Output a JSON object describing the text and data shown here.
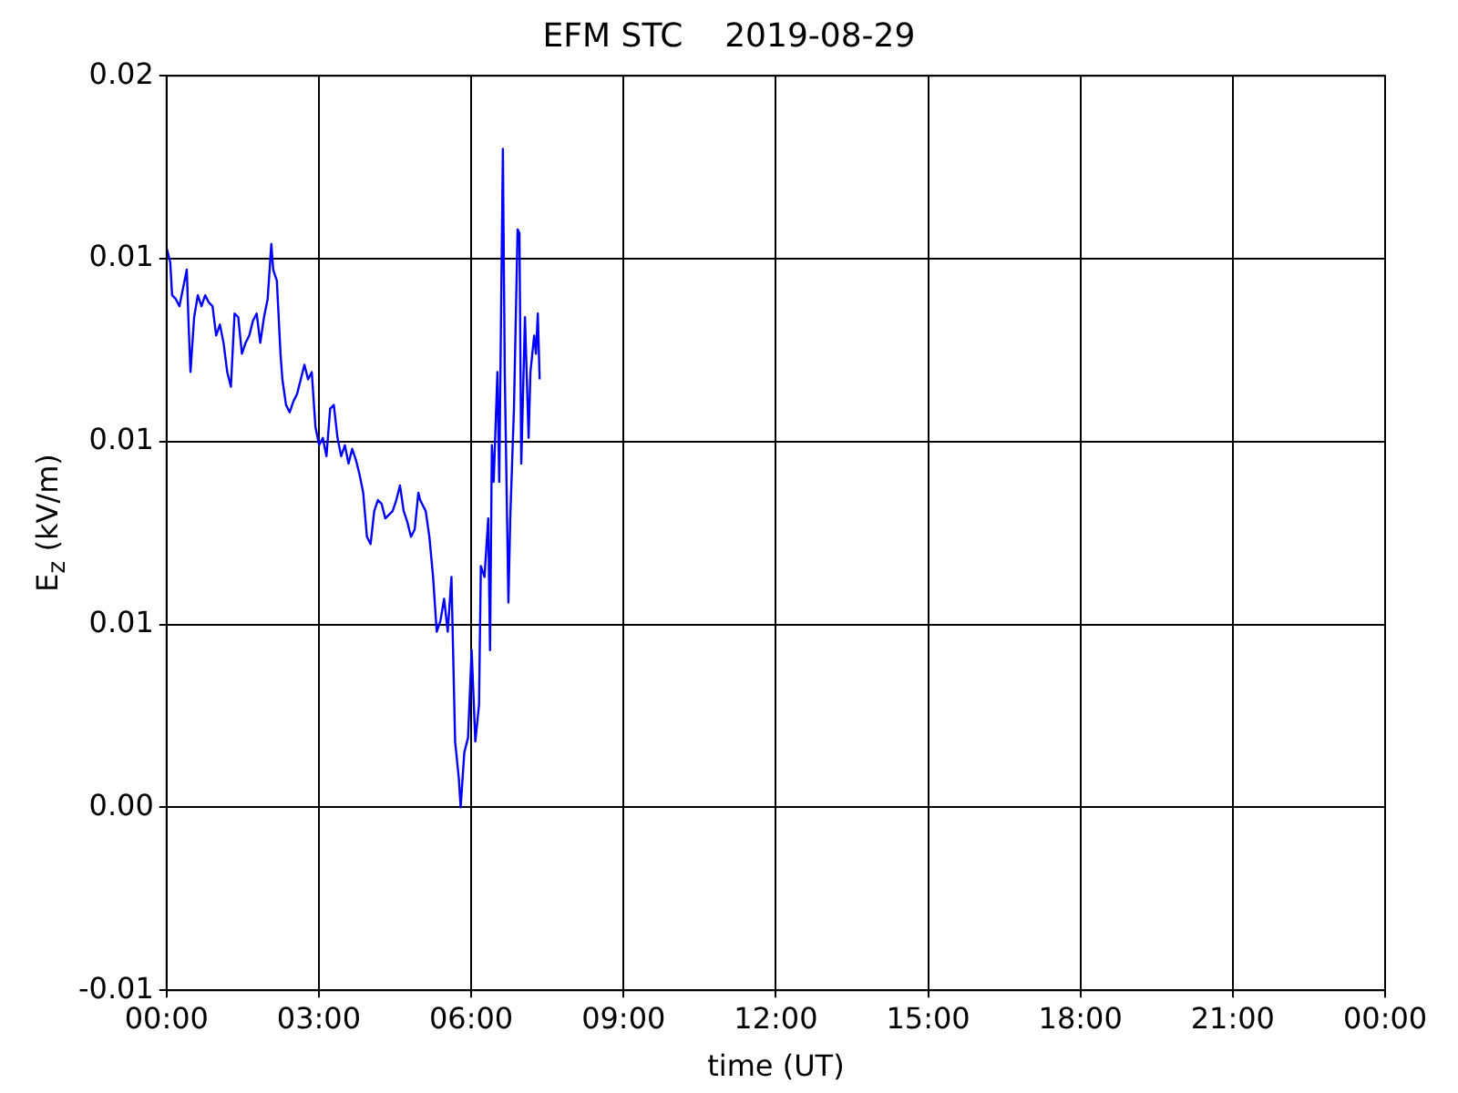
{
  "chart_data": {
    "type": "line",
    "title": "EFM STC    2019-08-29",
    "xlabel": "time (UT)",
    "ylabel": "E$_{z}$ (kV/m)",
    "xlim": [
      0,
      24
    ],
    "xticks": [
      {
        "value": 0,
        "label": "00:00"
      },
      {
        "value": 3,
        "label": "03:00"
      },
      {
        "value": 6,
        "label": "06:00"
      },
      {
        "value": 9,
        "label": "09:00"
      },
      {
        "value": 12,
        "label": "12:00"
      },
      {
        "value": 15,
        "label": "15:00"
      },
      {
        "value": 18,
        "label": "18:00"
      },
      {
        "value": 21,
        "label": "21:00"
      },
      {
        "value": 24,
        "label": "00:00"
      }
    ],
    "ylim": [
      -0.005,
      0.02
    ],
    "yticks": [
      {
        "value": -0.005,
        "label": "-0.01"
      },
      {
        "value": 0,
        "label": "0.00"
      },
      {
        "value": 0.005,
        "label": "0.01"
      },
      {
        "value": 0.01,
        "label": "0.01"
      },
      {
        "value": 0.015,
        "label": "0.01"
      },
      {
        "value": 0.02,
        "label": "0.02"
      }
    ],
    "grid": true,
    "line_style": "solid",
    "series": [
      {
        "color": "#0000ff",
        "x": [
          0.0,
          0.072,
          0.109,
          0.181,
          0.253,
          0.326,
          0.398,
          0.434,
          0.471,
          0.543,
          0.615,
          0.688,
          0.76,
          0.833,
          0.905,
          0.977,
          1.05,
          1.122,
          1.195,
          1.267,
          1.339,
          1.412,
          1.484,
          1.557,
          1.629,
          1.701,
          1.774,
          1.846,
          1.919,
          1.991,
          2.063,
          2.1,
          2.172,
          2.244,
          2.281,
          2.353,
          2.425,
          2.498,
          2.57,
          2.643,
          2.715,
          2.787,
          2.86,
          2.932,
          3.005,
          3.077,
          3.149,
          3.222,
          3.294,
          3.367,
          3.439,
          3.511,
          3.584,
          3.656,
          3.729,
          3.801,
          3.873,
          3.946,
          4.018,
          4.09,
          4.163,
          4.235,
          4.308,
          4.38,
          4.452,
          4.525,
          4.597,
          4.67,
          4.742,
          4.814,
          4.887,
          4.959,
          4.995,
          5.104,
          5.176,
          5.249,
          5.321,
          5.394,
          5.466,
          5.538,
          5.611,
          5.683,
          5.756,
          5.792,
          5.864,
          5.937,
          6.009,
          6.081,
          6.154,
          6.19,
          6.262,
          6.335,
          6.371,
          6.407,
          6.443,
          6.516,
          6.552,
          6.624,
          6.661,
          6.733,
          6.769,
          6.842,
          6.914,
          6.95,
          6.986,
          7.059,
          7.131,
          7.167,
          7.24,
          7.276,
          7.312,
          7.348
        ],
        "values": [
          0.0153,
          0.0149,
          0.014,
          0.0139,
          0.0137,
          0.0142,
          0.0147,
          0.0132,
          0.0119,
          0.0134,
          0.014,
          0.0137,
          0.014,
          0.0138,
          0.0137,
          0.0129,
          0.0132,
          0.0127,
          0.0119,
          0.0115,
          0.0135,
          0.0134,
          0.0124,
          0.0127,
          0.0129,
          0.0133,
          0.0135,
          0.0127,
          0.0134,
          0.0139,
          0.0154,
          0.0147,
          0.0144,
          0.0124,
          0.0117,
          0.011,
          0.0108,
          0.0111,
          0.0113,
          0.0117,
          0.0121,
          0.0117,
          0.0119,
          0.0104,
          0.0099,
          0.0101,
          0.0096,
          0.0109,
          0.011,
          0.0101,
          0.0096,
          0.0099,
          0.0094,
          0.0098,
          0.0095,
          0.0091,
          0.0086,
          0.0074,
          0.0072,
          0.0081,
          0.0084,
          0.0083,
          0.0079,
          0.008,
          0.0081,
          0.0084,
          0.0088,
          0.0081,
          0.0078,
          0.0074,
          0.0076,
          0.0086,
          0.0084,
          0.0081,
          0.0074,
          0.0063,
          0.0048,
          0.0051,
          0.0057,
          0.0048,
          0.0063,
          0.0018,
          0.0008,
          0.0,
          0.0015,
          0.0019,
          0.0043,
          0.0018,
          0.0028,
          0.0066,
          0.0063,
          0.0079,
          0.0043,
          0.0099,
          0.0089,
          0.0119,
          0.0089,
          0.018,
          0.0119,
          0.0056,
          0.0079,
          0.0109,
          0.0158,
          0.0157,
          0.0094,
          0.0134,
          0.0101,
          0.0119,
          0.0129,
          0.0124,
          0.0135,
          0.0117
        ]
      }
    ]
  }
}
